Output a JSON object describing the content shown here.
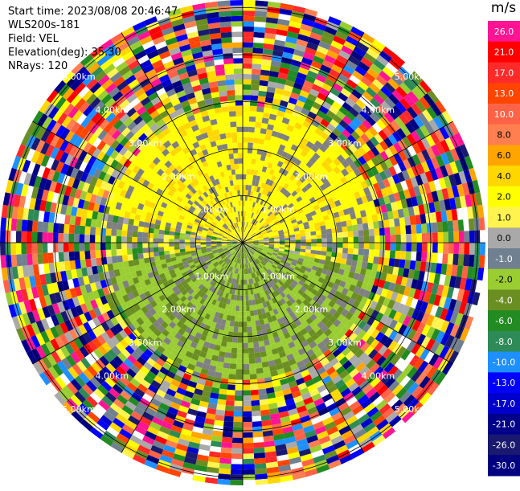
{
  "header": {
    "start_time": "Start time: 2023/08/08 20:46:47",
    "instrument": "WLS200s-181",
    "field": "Field: VEL",
    "elevation": "Elevation(deg): 35.30",
    "nrays": "NRays: 120"
  },
  "colorbar": {
    "unit": "m/s",
    "ticks": [
      "26.0",
      "21.0",
      "17.0",
      "13.0",
      "10.0",
      "8.0",
      "6.0",
      "4.0",
      "2.0",
      "1.0",
      "0.0",
      "-1.0",
      "-2.0",
      "-4.0",
      "-6.0",
      "-8.0",
      "-10.0",
      "-13.0",
      "-17.0",
      "-21.0",
      "-26.0",
      "-30.0"
    ],
    "colors": [
      "#ff1493",
      "#ff0000",
      "#ff2a2a",
      "#ff4500",
      "#ff6347",
      "#ff7f50",
      "#ffa500",
      "#ffd700",
      "#ffff00",
      "#fff44f",
      "#a9a9a9",
      "#708090",
      "#9acd32",
      "#6b8e23",
      "#228b22",
      "#2e8b57",
      "#1e90ff",
      "#0000ff",
      "#0000cd",
      "#00008b",
      "#191970",
      "#000080"
    ]
  },
  "range_rings": {
    "labels": [
      "1.00km",
      "2.00km",
      "3.00km",
      "4.00km",
      "5.00km"
    ]
  }
}
